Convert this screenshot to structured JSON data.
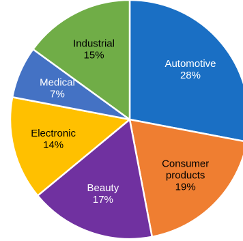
{
  "chart_data": {
    "type": "pie",
    "slices": [
      {
        "label": "Automotive",
        "percent_label": "28%",
        "value": 28,
        "color": "#1a6fc4",
        "text_color": "#ffffff"
      },
      {
        "label": "Consumer products",
        "label_lines": [
          "Consumer",
          "products"
        ],
        "percent_label": "19%",
        "value": 19,
        "color": "#ef7e31",
        "text_color": "#000000"
      },
      {
        "label": "Beauty",
        "percent_label": "17%",
        "value": 17,
        "color": "#7031a0",
        "text_color": "#ffffff"
      },
      {
        "label": "Electronic",
        "percent_label": "14%",
        "value": 14,
        "color": "#ffc000",
        "text_color": "#000000"
      },
      {
        "label": "Medical",
        "percent_label": "7%",
        "value": 7,
        "color": "#4472c4",
        "text_color": "#ffffff"
      },
      {
        "label": "Industrial",
        "percent_label": "15%",
        "value": 15,
        "color": "#70ad47",
        "text_color": "#000000"
      }
    ],
    "start_angle": "12 o'clock",
    "direction": "clockwise",
    "legend": "none"
  }
}
